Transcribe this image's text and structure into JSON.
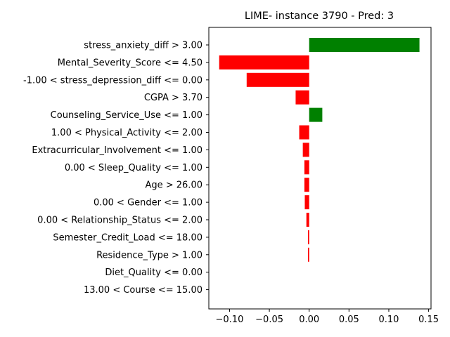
{
  "chart_data": {
    "type": "bar",
    "orientation": "horizontal",
    "title": "LIME- instance 3790 - Pred: 3",
    "xlabel": "",
    "ylabel": "",
    "xlim": [
      -0.126,
      0.153
    ],
    "xticks": [
      -0.1,
      -0.05,
      0.0,
      0.05,
      0.1,
      0.15
    ],
    "xtick_labels": [
      "−0.10",
      "−0.05",
      "0.00",
      "0.05",
      "0.10",
      "0.15"
    ],
    "grid": false,
    "colors": {
      "positive": "#008000",
      "negative": "#ff0000"
    },
    "categories": [
      "stress_anxiety_diff > 3.00",
      "Mental_Severity_Score <= 4.50",
      "-1.00 < stress_depression_diff <= 0.00",
      "CGPA > 3.70",
      "Counseling_Service_Use <= 1.00",
      "1.00 < Physical_Activity <= 2.00",
      "Extracurricular_Involvement <= 1.00",
      "0.00 < Sleep_Quality <= 1.00",
      "Age > 26.00",
      "0.00 < Gender <= 1.00",
      "0.00 < Relationship_Status <= 2.00",
      "Semester_Credit_Load <= 18.00",
      "Residence_Type > 1.00",
      "Diet_Quality <= 0.00",
      "13.00 < Course <= 15.00"
    ],
    "values": [
      0.1385,
      -0.113,
      -0.0785,
      -0.017,
      0.0165,
      -0.0125,
      -0.008,
      -0.006,
      -0.006,
      -0.0055,
      -0.0035,
      -0.0015,
      -0.0015,
      0.0,
      0.0
    ]
  }
}
